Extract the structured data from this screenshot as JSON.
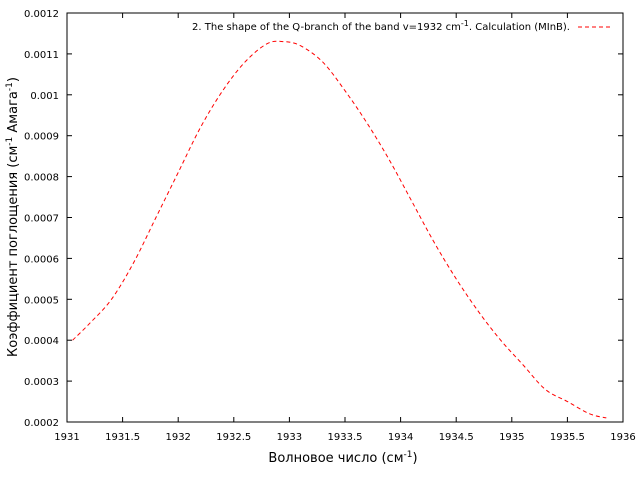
{
  "chart_data": {
    "type": "line",
    "title": "",
    "xlabel": "Волновое число (см",
    "xlabel_sup": "-1",
    "xlabel_suffix": ")",
    "ylabel": "Коэффициент поглощения (см",
    "ylabel_sup1": "-1",
    "ylabel_mid": "Амага",
    "ylabel_sup2": "-1",
    "ylabel_suffix": ")",
    "xlim": [
      1931,
      1936
    ],
    "ylim": [
      0.0002,
      0.0012
    ],
    "x_ticks": [
      "1931",
      "1931.5",
      "1932",
      "1932.5",
      "1933",
      "1933.5",
      "1934",
      "1934.5",
      "1935",
      "1935.5",
      "1936"
    ],
    "y_ticks": [
      "0.0002",
      "0.0003",
      "0.0004",
      "0.0005",
      "0.0006",
      "0.0007",
      "0.0008",
      "0.0009",
      "0.001",
      "0.0011",
      "0.0012"
    ],
    "grid": false,
    "legend_position": "top-right",
    "series": [
      {
        "name": "2. The shape of the Q-branch of the band v=1932 cm",
        "name_sup": "-1",
        "name_suffix": ". Calculation (MInB).",
        "color": "#ff0000",
        "line_style": "dashed",
        "x": [
          1931.05,
          1931.2,
          1931.4,
          1931.6,
          1931.8,
          1932.0,
          1932.2,
          1932.4,
          1932.6,
          1932.8,
          1932.95,
          1933.1,
          1933.3,
          1933.5,
          1933.7,
          1933.9,
          1934.1,
          1934.3,
          1934.5,
          1934.7,
          1934.9,
          1935.1,
          1935.3,
          1935.5,
          1935.7,
          1935.85
        ],
        "y": [
          0.0004,
          0.00044,
          0.0005,
          0.00059,
          0.0007,
          0.00081,
          0.00092,
          0.00101,
          0.00108,
          0.001125,
          0.00113,
          0.00112,
          0.00108,
          0.00101,
          0.00093,
          0.00084,
          0.00074,
          0.00064,
          0.00055,
          0.00047,
          0.0004,
          0.00034,
          0.00028,
          0.00025,
          0.00022,
          0.00021
        ]
      }
    ]
  }
}
